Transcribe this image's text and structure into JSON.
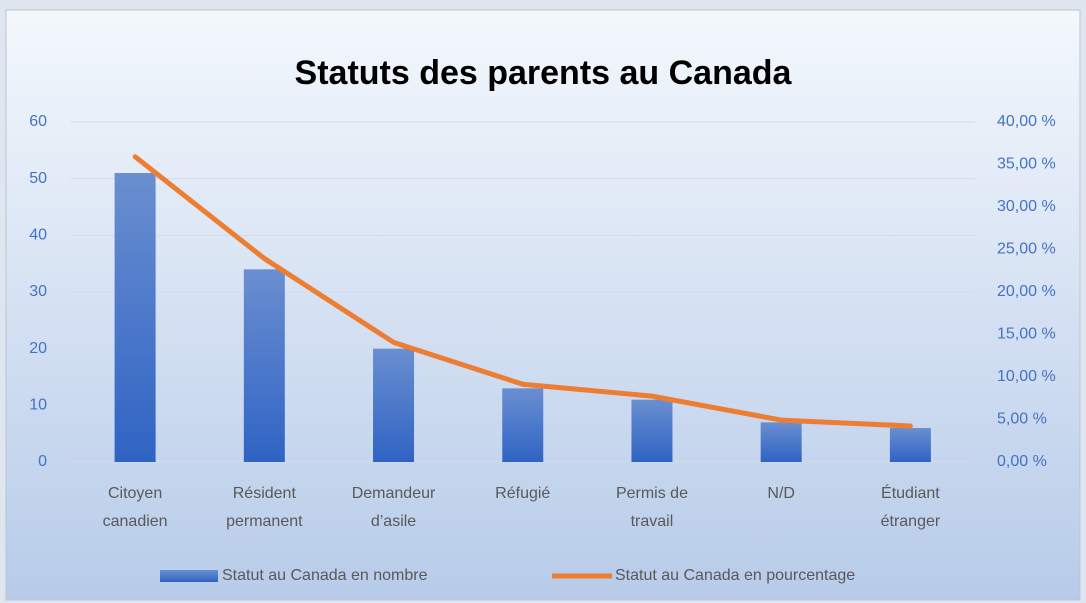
{
  "chart_data": {
    "type": "bar_line",
    "title": "Statuts des parents au Canada",
    "categories": [
      "Citoyen canadien",
      "Résident permanent",
      "Demandeur d’asile",
      "Réfugié",
      "Permis de travail",
      "N/D",
      "Étudiant étranger"
    ],
    "series": [
      {
        "name": "Statut au Canada en nombre",
        "type": "bar",
        "color": "#4472c4",
        "values": [
          51,
          34,
          20,
          13,
          11,
          7,
          6
        ]
      },
      {
        "name": "Statut au Canada en pourcentage",
        "type": "line",
        "axis": "y2",
        "color": "#ed7d31",
        "values": [
          35.92,
          23.94,
          14.08,
          9.15,
          7.75,
          4.93,
          4.23
        ]
      }
    ],
    "ylim": [
      0,
      60
    ],
    "yticks": [
      0,
      10,
      20,
      30,
      40,
      50,
      60
    ],
    "y2lim": [
      0,
      40
    ],
    "y2ticks": [
      {
        "value": 0,
        "label": "0,00 %"
      },
      {
        "value": 5,
        "label": "5,00 %"
      },
      {
        "value": 10,
        "label": "10,00 %"
      },
      {
        "value": 15,
        "label": "15,00 %"
      },
      {
        "value": 20,
        "label": "20,00 %"
      },
      {
        "value": 25,
        "label": "25,00 %"
      },
      {
        "value": 30,
        "label": "30,00 %"
      },
      {
        "value": 35,
        "label": "35,00 %"
      },
      {
        "value": 40,
        "label": "40,00 %"
      }
    ],
    "grid": true,
    "legend": "bottom"
  }
}
